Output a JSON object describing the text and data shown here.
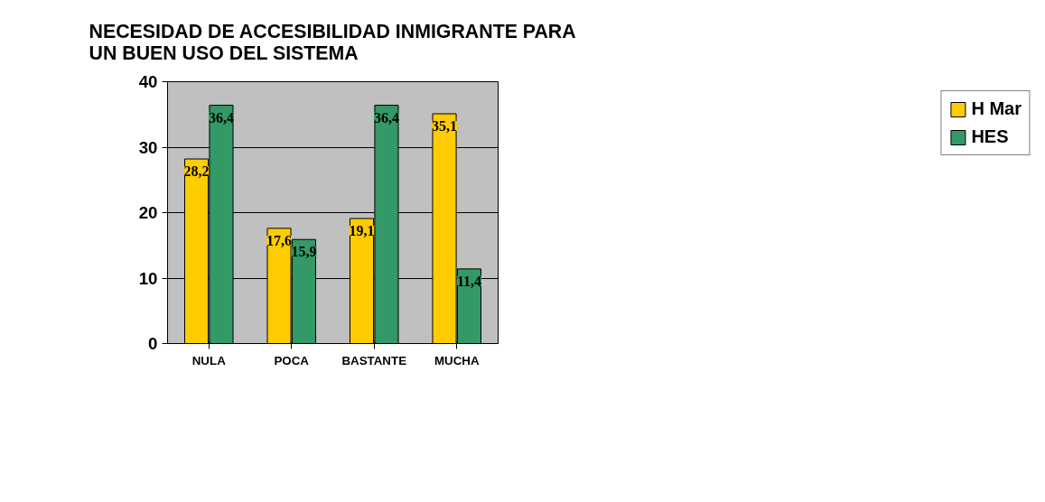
{
  "chart_data": {
    "type": "bar",
    "title": "NECESIDAD DE ACCESIBILIDAD INMIGRANTE PARA\nUN BUEN USO DEL SISTEMA",
    "categories": [
      "NULA",
      "POCA",
      "BASTANTE",
      "MUCHA"
    ],
    "series": [
      {
        "name": "H Mar",
        "color": "#ffcc00",
        "values": [
          28.2,
          17.6,
          19.1,
          35.1
        ],
        "value_labels": [
          "28,2",
          "17,6",
          "19,1",
          "35,1"
        ]
      },
      {
        "name": "HES",
        "color": "#339966",
        "values": [
          36.4,
          15.9,
          36.4,
          11.4
        ],
        "value_labels": [
          "36,4",
          "15,9",
          "36,4",
          "11,4"
        ]
      }
    ],
    "ylim": [
      0,
      40
    ],
    "yticks": [
      0,
      10,
      20,
      30,
      40
    ],
    "grid": "y",
    "legend": "right"
  }
}
